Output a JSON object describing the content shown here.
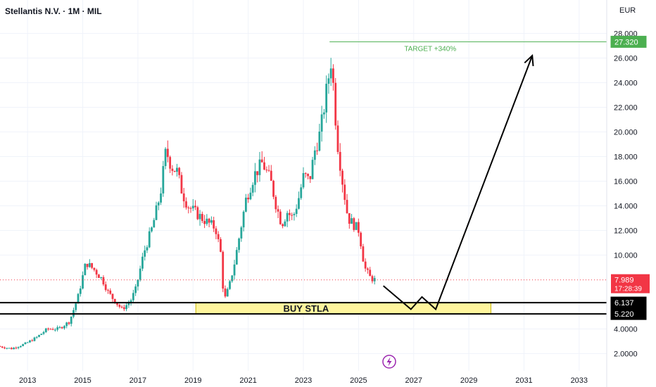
{
  "header": {
    "symbol_title": "Stellantis N.V. · 1M · MIL",
    "currency": "EUR"
  },
  "chart_data": {
    "type": "candlestick",
    "ylim": [
      0.6,
      29.0
    ],
    "xlim": [
      2012.0,
      2034.0
    ],
    "y_ticks": [
      {
        "value": 2.0,
        "label": "2.0000"
      },
      {
        "value": 4.0,
        "label": "4.0000"
      },
      {
        "value": 10.0,
        "label": "10.000"
      },
      {
        "value": 12.0,
        "label": "12.000"
      },
      {
        "value": 14.0,
        "label": "14.000"
      },
      {
        "value": 16.0,
        "label": "16.000"
      },
      {
        "value": 18.0,
        "label": "18.000"
      },
      {
        "value": 20.0,
        "label": "20.000"
      },
      {
        "value": 22.0,
        "label": "22.000"
      },
      {
        "value": 24.0,
        "label": "24.000"
      },
      {
        "value": 26.0,
        "label": "26.000"
      },
      {
        "value": 28.0,
        "label": "28.000"
      }
    ],
    "x_ticks": [
      {
        "value": 2013,
        "label": "2013"
      },
      {
        "value": 2015,
        "label": "2015"
      },
      {
        "value": 2017,
        "label": "2017"
      },
      {
        "value": 2019,
        "label": "2019"
      },
      {
        "value": 2021,
        "label": "2021"
      },
      {
        "value": 2023,
        "label": "2023"
      },
      {
        "value": 2025,
        "label": "2025"
      },
      {
        "value": 2027,
        "label": "2027"
      },
      {
        "value": 2029,
        "label": "2029"
      },
      {
        "value": 2031,
        "label": "2031"
      },
      {
        "value": 2033,
        "label": "2033"
      }
    ],
    "price_path": [
      [
        2012.0,
        2.6
      ],
      [
        2012.5,
        2.4
      ],
      [
        2013.0,
        2.8
      ],
      [
        2013.4,
        3.3
      ],
      [
        2013.8,
        4.0
      ],
      [
        2014.2,
        4.0
      ],
      [
        2014.6,
        4.6
      ],
      [
        2014.9,
        6.5
      ],
      [
        2015.2,
        9.4
      ],
      [
        2015.5,
        8.8
      ],
      [
        2015.8,
        8.0
      ],
      [
        2016.0,
        7.0
      ],
      [
        2016.2,
        6.4
      ],
      [
        2016.5,
        5.6
      ],
      [
        2016.8,
        6.2
      ],
      [
        2017.0,
        7.2
      ],
      [
        2017.3,
        10.2
      ],
      [
        2017.6,
        12.2
      ],
      [
        2017.9,
        15.0
      ],
      [
        2018.1,
        18.5
      ],
      [
        2018.3,
        17.2
      ],
      [
        2018.5,
        16.8
      ],
      [
        2018.7,
        15.0
      ],
      [
        2018.9,
        14.0
      ],
      [
        2019.1,
        13.6
      ],
      [
        2019.4,
        13.0
      ],
      [
        2019.7,
        12.5
      ],
      [
        2019.9,
        12.2
      ],
      [
        2020.1,
        10.0
      ],
      [
        2020.2,
        6.2
      ],
      [
        2020.4,
        7.5
      ],
      [
        2020.6,
        9.5
      ],
      [
        2020.8,
        12.0
      ],
      [
        2021.0,
        14.5
      ],
      [
        2021.3,
        16.5
      ],
      [
        2021.6,
        17.5
      ],
      [
        2021.9,
        16.0
      ],
      [
        2022.1,
        14.0
      ],
      [
        2022.3,
        12.5
      ],
      [
        2022.5,
        13.5
      ],
      [
        2022.7,
        13.0
      ],
      [
        2022.9,
        14.5
      ],
      [
        2023.1,
        16.5
      ],
      [
        2023.3,
        16.0
      ],
      [
        2023.5,
        18.5
      ],
      [
        2023.7,
        20.0
      ],
      [
        2023.9,
        23.0
      ],
      [
        2024.1,
        26.0
      ],
      [
        2024.3,
        19.5
      ],
      [
        2024.5,
        16.0
      ],
      [
        2024.7,
        13.0
      ],
      [
        2024.9,
        12.5
      ],
      [
        2025.1,
        12.0
      ],
      [
        2025.3,
        9.0
      ],
      [
        2025.5,
        8.2
      ],
      [
        2025.65,
        7.99
      ]
    ],
    "levels": [
      {
        "value": 6.137,
        "label": "6.137"
      },
      {
        "value": 5.22,
        "label": "5.220"
      }
    ],
    "current_price": {
      "value": 7.989,
      "label": "7.989",
      "countdown": "17:28:39"
    },
    "target": {
      "value": 27.32,
      "label": "27.320",
      "text": "TARGET  +340%"
    },
    "buy_zone": {
      "x_start": 2019.1,
      "x_end": 2029.8,
      "y_low": 5.22,
      "y_high": 6.137,
      "text": "BUY STLA"
    },
    "projection": [
      [
        2025.9,
        7.5
      ],
      [
        2026.9,
        5.6
      ],
      [
        2027.3,
        6.6
      ],
      [
        2027.8,
        5.6
      ],
      [
        2031.3,
        26.2
      ]
    ],
    "colors": {
      "up": "#26a69a",
      "down": "#f23645",
      "target": "#4caf50",
      "zone": "#fff59d",
      "levels": "#000000"
    }
  }
}
